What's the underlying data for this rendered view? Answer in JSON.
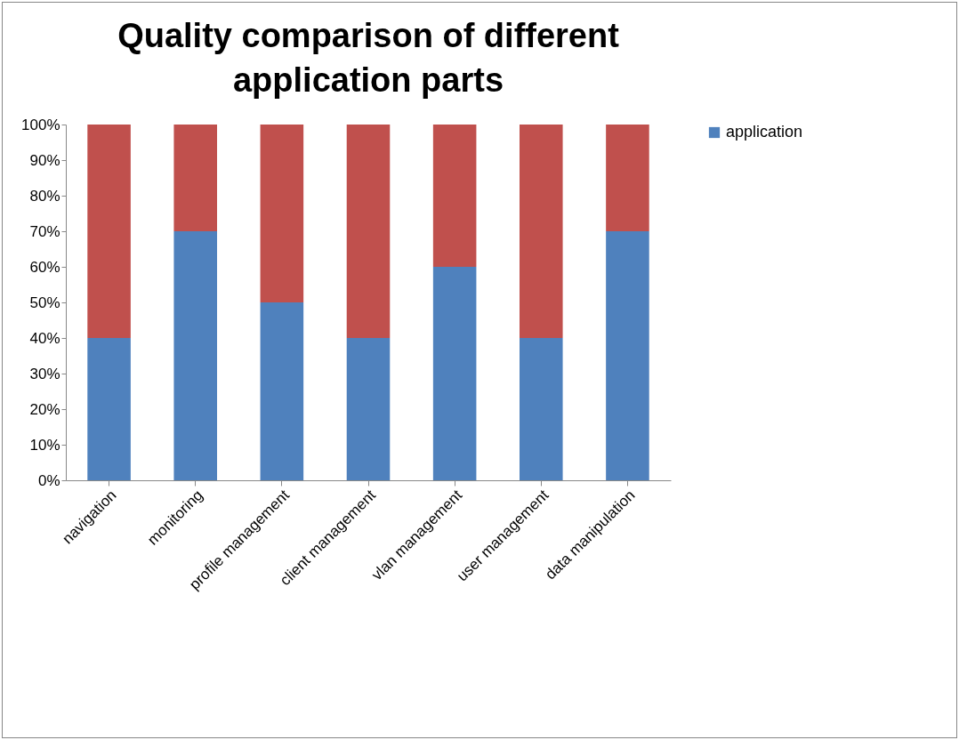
{
  "chart_data": {
    "type": "bar",
    "title": "Quality comparison of different application parts",
    "categories": [
      "navigation",
      "monitoring",
      "profile management",
      "client management",
      "vlan management",
      "user management",
      "data manipulation"
    ],
    "series": [
      {
        "name": "application",
        "color": "#4f81bd",
        "values": [
          40,
          70,
          50,
          40,
          60,
          40,
          70
        ]
      },
      {
        "color": "#c0504d",
        "values": [
          60,
          30,
          50,
          60,
          40,
          60,
          30
        ]
      }
    ],
    "stacked": true,
    "ylim": [
      0,
      100
    ],
    "yticks": [
      {
        "value": 0,
        "label": "0%"
      },
      {
        "value": 10,
        "label": "10%"
      },
      {
        "value": 20,
        "label": "20%"
      },
      {
        "value": 30,
        "label": "30%"
      },
      {
        "value": 40,
        "label": "40%"
      },
      {
        "value": 50,
        "label": "50%"
      },
      {
        "value": 60,
        "label": "60%"
      },
      {
        "value": 70,
        "label": "70%"
      },
      {
        "value": 80,
        "label": "80%"
      },
      {
        "value": 90,
        "label": "90%"
      },
      {
        "value": 100,
        "label": "100%"
      }
    ],
    "grid": false,
    "legend": "right"
  }
}
